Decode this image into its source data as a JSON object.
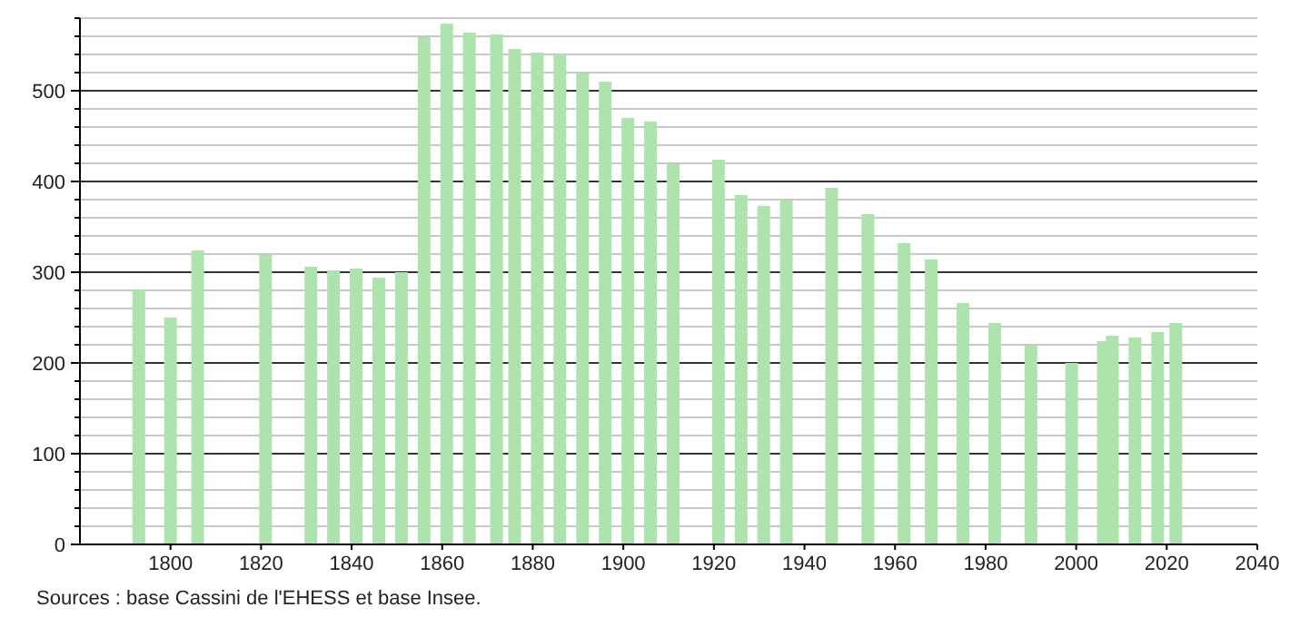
{
  "chart_data": {
    "type": "bar",
    "x": [
      1793,
      1800,
      1806,
      1821,
      1831,
      1836,
      1841,
      1846,
      1851,
      1856,
      1861,
      1866,
      1872,
      1876,
      1881,
      1886,
      1891,
      1896,
      1901,
      1906,
      1911,
      1921,
      1926,
      1931,
      1936,
      1946,
      1954,
      1962,
      1968,
      1975,
      1982,
      1990,
      1999,
      2006,
      2008,
      2013,
      2018,
      2022
    ],
    "values": [
      281,
      250,
      324,
      319,
      306,
      302,
      304,
      294,
      300,
      559,
      574,
      564,
      562,
      546,
      542,
      540,
      519,
      510,
      470,
      466,
      419,
      424,
      385,
      373,
      379,
      393,
      364,
      332,
      314,
      266,
      244,
      219,
      200,
      224,
      230,
      228,
      234,
      244
    ],
    "color": "#aee3ae",
    "xlim": [
      1780,
      2040
    ],
    "xticks": [
      1800,
      1820,
      1840,
      1860,
      1880,
      1900,
      1920,
      1940,
      1960,
      1980,
      2000,
      2020,
      2040
    ],
    "ylim": [
      0,
      580
    ],
    "yticks": [
      0,
      {
        "value": 20,
        "label": null
      },
      {
        "value": 40,
        "label": null
      },
      {
        "value": 60,
        "label": null
      },
      {
        "value": 80,
        "label": null
      },
      100,
      {
        "value": 120,
        "label": null
      },
      {
        "value": 140,
        "label": null
      },
      {
        "value": 160,
        "label": null
      },
      {
        "value": 180,
        "label": null
      },
      200,
      {
        "value": 220,
        "label": null
      },
      {
        "value": 240,
        "label": null
      },
      {
        "value": 260,
        "label": null
      },
      {
        "value": 280,
        "label": null
      },
      300,
      {
        "value": 320,
        "label": null
      },
      {
        "value": 340,
        "label": null
      },
      {
        "value": 360,
        "label": null
      },
      {
        "value": 380,
        "label": null
      },
      400,
      {
        "value": 420,
        "label": null
      },
      {
        "value": 440,
        "label": null
      },
      {
        "value": 460,
        "label": null
      },
      {
        "value": 480,
        "label": null
      },
      500,
      {
        "value": 520,
        "label": null
      },
      {
        "value": 540,
        "label": null
      },
      {
        "value": 560,
        "label": null
      },
      {
        "value": 580,
        "label": null
      }
    ],
    "grid": "y",
    "annotations": [
      "Sources : base Cassini de l'EHESS et base Insee."
    ]
  }
}
